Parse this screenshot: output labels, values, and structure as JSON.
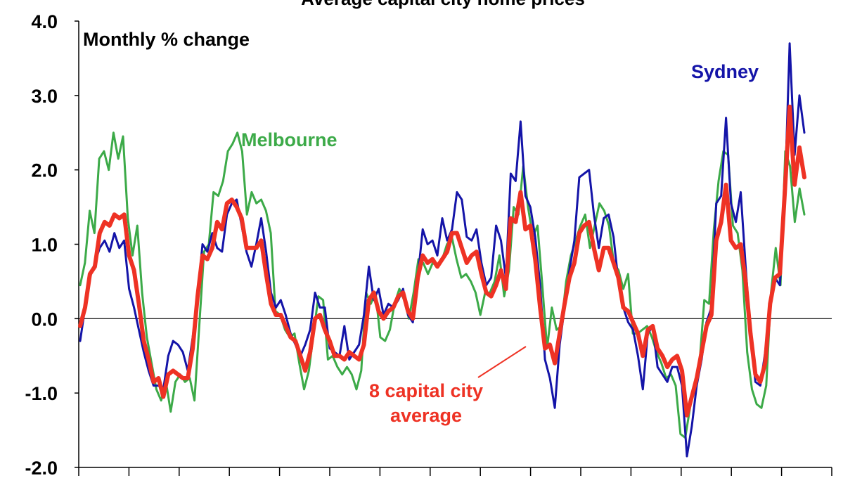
{
  "chart_data": {
    "type": "line",
    "title": "Average capital city home prices",
    "subtitle": "Monthly % change",
    "ylim": [
      -2.0,
      4.0
    ],
    "yticks": [
      "4.0",
      "3.0",
      "2.0",
      "1.0",
      "0.0",
      "-1.0",
      "-2.0"
    ],
    "grid": false,
    "x_ticks_count": 15,
    "colors": {
      "sydney": "#1414a8",
      "melbourne": "#3caa48",
      "average": "#ee3224",
      "axis": "#000000"
    },
    "annotations": {
      "sydney": "Sydney",
      "melbourne": "Melbourne",
      "average_line1": "8 capital city",
      "average_line2": "average"
    },
    "series": [
      {
        "name": "Melbourne",
        "key": "melbourne",
        "values": [
          0.45,
          0.75,
          1.45,
          1.15,
          2.15,
          2.25,
          2.0,
          2.5,
          2.15,
          2.45,
          1.35,
          0.85,
          1.25,
          0.35,
          -0.25,
          -0.6,
          -0.95,
          -1.1,
          -0.85,
          -1.25,
          -0.85,
          -0.75,
          -0.85,
          -0.8,
          -1.1,
          -0.1,
          0.9,
          1.0,
          1.7,
          1.65,
          1.85,
          2.25,
          2.35,
          2.5,
          2.25,
          1.4,
          1.7,
          1.55,
          1.6,
          1.45,
          1.15,
          0.1,
          0.05,
          -0.15,
          -0.25,
          -0.2,
          -0.6,
          -0.95,
          -0.7,
          -0.2,
          0.3,
          0.25,
          -0.55,
          -0.5,
          -0.65,
          -0.75,
          -0.65,
          -0.75,
          -0.95,
          -0.7,
          0.35,
          0.2,
          0.35,
          -0.25,
          -0.3,
          -0.15,
          0.2,
          0.4,
          0.25,
          0.0,
          0.35,
          0.8,
          0.75,
          0.6,
          0.75,
          0.7,
          0.8,
          1.0,
          1.1,
          0.8,
          0.55,
          0.6,
          0.5,
          0.35,
          0.05,
          0.35,
          0.35,
          0.5,
          0.85,
          0.3,
          0.65,
          1.5,
          1.4,
          2.05,
          1.5,
          1.1,
          1.25,
          0.45,
          -0.4,
          0.15,
          -0.15,
          -0.1,
          0.5,
          0.85,
          1.05,
          1.25,
          1.4,
          0.95,
          1.25,
          1.55,
          1.45,
          1.25,
          0.75,
          0.65,
          0.4,
          0.6,
          -0.2,
          -0.2,
          -0.15,
          -0.1,
          -0.25,
          -0.45,
          -0.6,
          -0.8,
          -0.75,
          -0.9,
          -1.55,
          -1.6,
          -1.2,
          -0.85,
          -0.6,
          0.25,
          0.2,
          1.2,
          1.85,
          2.25,
          2.2,
          1.25,
          1.15,
          0.65,
          -0.45,
          -0.95,
          -1.15,
          -1.2,
          -0.9,
          0.35,
          0.95,
          0.45,
          2.25,
          2.05,
          1.3,
          1.75,
          1.4
        ]
      },
      {
        "name": "Sydney",
        "key": "sydney",
        "values": [
          -0.3,
          0.15,
          0.55,
          0.75,
          0.95,
          1.05,
          0.9,
          1.15,
          0.95,
          1.05,
          0.4,
          0.15,
          -0.15,
          -0.45,
          -0.7,
          -0.9,
          -0.9,
          -0.95,
          -0.5,
          -0.3,
          -0.35,
          -0.45,
          -0.7,
          -0.25,
          0.3,
          1.0,
          0.9,
          1.15,
          0.95,
          0.9,
          1.4,
          1.55,
          1.6,
          1.25,
          0.9,
          0.7,
          1.0,
          1.35,
          0.9,
          0.35,
          0.15,
          0.25,
          0.05,
          -0.2,
          -0.35,
          -0.5,
          -0.35,
          -0.15,
          0.35,
          0.15,
          0.15,
          -0.4,
          -0.45,
          -0.5,
          -0.1,
          -0.55,
          -0.45,
          -0.35,
          0.05,
          0.7,
          0.25,
          0.4,
          0.05,
          0.2,
          0.15,
          0.25,
          0.4,
          0.05,
          -0.05,
          0.55,
          1.2,
          1.0,
          1.05,
          0.85,
          1.35,
          1.05,
          1.2,
          1.7,
          1.6,
          1.1,
          1.05,
          1.2,
          0.75,
          0.45,
          0.55,
          1.25,
          1.05,
          0.55,
          1.95,
          1.85,
          2.65,
          1.65,
          1.5,
          1.1,
          0.45,
          -0.55,
          -0.8,
          -1.2,
          -0.35,
          0.15,
          0.65,
          1.05,
          1.9,
          1.95,
          2.0,
          1.4,
          0.95,
          1.35,
          1.4,
          1.1,
          0.5,
          0.15,
          -0.05,
          -0.15,
          -0.5,
          -0.95,
          -0.2,
          -0.1,
          -0.65,
          -0.75,
          -0.85,
          -0.65,
          -0.65,
          -0.9,
          -1.85,
          -1.45,
          -0.9,
          -0.55,
          -0.05,
          0.15,
          1.55,
          1.65,
          2.7,
          1.55,
          1.3,
          1.7,
          0.7,
          -0.2,
          -0.85,
          -0.9,
          -0.45,
          0.2,
          0.55,
          0.45,
          1.65,
          3.7,
          2.2,
          3.0,
          2.5
        ]
      },
      {
        "name": "8 capital city average",
        "key": "average",
        "values": [
          -0.1,
          0.15,
          0.6,
          0.7,
          1.15,
          1.3,
          1.25,
          1.4,
          1.35,
          1.4,
          0.85,
          0.65,
          0.2,
          -0.3,
          -0.55,
          -0.85,
          -0.8,
          -1.05,
          -0.75,
          -0.7,
          -0.75,
          -0.8,
          -0.8,
          -0.4,
          0.3,
          0.85,
          0.8,
          0.95,
          1.3,
          1.2,
          1.55,
          1.6,
          1.5,
          1.35,
          0.95,
          0.95,
          0.95,
          1.05,
          0.6,
          0.2,
          0.05,
          0.05,
          -0.1,
          -0.25,
          -0.3,
          -0.5,
          -0.7,
          -0.45,
          0.0,
          0.05,
          -0.15,
          -0.3,
          -0.5,
          -0.5,
          -0.55,
          -0.45,
          -0.5,
          -0.55,
          -0.35,
          0.25,
          0.35,
          0.1,
          0.0,
          0.1,
          0.15,
          0.3,
          0.35,
          0.1,
          0.0,
          0.55,
          0.85,
          0.75,
          0.8,
          0.7,
          0.8,
          0.9,
          1.15,
          1.15,
          0.95,
          0.75,
          0.85,
          0.9,
          0.6,
          0.35,
          0.3,
          0.45,
          0.65,
          0.4,
          1.35,
          1.3,
          1.7,
          1.2,
          1.25,
          0.8,
          0.15,
          -0.4,
          -0.35,
          -0.6,
          -0.2,
          0.2,
          0.55,
          0.75,
          1.15,
          1.25,
          1.3,
          0.95,
          0.65,
          0.95,
          0.95,
          0.75,
          0.55,
          0.15,
          0.1,
          -0.05,
          -0.2,
          -0.5,
          -0.15,
          -0.1,
          -0.4,
          -0.5,
          -0.65,
          -0.55,
          -0.5,
          -0.7,
          -1.3,
          -1.05,
          -0.8,
          -0.45,
          -0.1,
          0.05,
          1.05,
          1.3,
          1.8,
          1.05,
          0.95,
          1.0,
          0.5,
          -0.2,
          -0.75,
          -0.85,
          -0.6,
          0.2,
          0.55,
          0.6,
          1.7,
          2.85,
          1.8,
          2.3,
          1.9
        ]
      }
    ]
  }
}
